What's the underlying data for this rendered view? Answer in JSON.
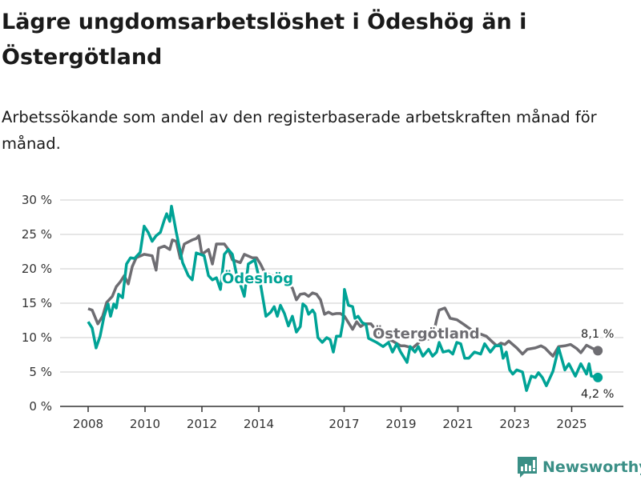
{
  "title": "Lägre ungdomsarbetslöshet i Ödeshög än i Östergötland",
  "subtitle": "Arbetssökande som andel av den registerbaserade arbetskraften månad för månad.",
  "brand": "Newsworthy",
  "colors": {
    "odeshog": "#00a396",
    "ostergotland": "#6e6d72",
    "grid": "#dddddd",
    "brand": "#3a8f86"
  },
  "chart_data": {
    "type": "line",
    "title": "Lägre ungdomsarbetslöshet i Ödeshög än i Östergötland",
    "xlabel": "",
    "ylabel": "",
    "ylim": [
      0,
      30
    ],
    "xlim": [
      2008,
      2026
    ],
    "grid": true,
    "y_ticks": [
      0,
      5,
      10,
      15,
      20,
      25,
      30
    ],
    "y_tick_labels": [
      "0 %",
      "5 %",
      "10 %",
      "15 %",
      "20 %",
      "25 %",
      "30 %"
    ],
    "x_ticks": [
      2008,
      2010,
      2012,
      2014,
      2017,
      2019,
      2021,
      2023,
      2025
    ],
    "x_tick_labels": [
      "2008",
      "2010",
      "2012",
      "2014",
      "2017",
      "2019",
      "2021",
      "2023",
      "2025"
    ],
    "series": [
      {
        "name": "Östergötland",
        "end_label": "8,1 %",
        "x": [
          2008.0,
          2008.14,
          2008.34,
          2008.51,
          2008.65,
          2008.85,
          2008.99,
          2009.13,
          2009.27,
          2009.41,
          2009.55,
          2009.69,
          2009.97,
          2010.25,
          2010.39,
          2010.48,
          2010.68,
          2010.87,
          2010.96,
          2011.1,
          2011.24,
          2011.38,
          2011.66,
          2011.8,
          2011.89,
          2012.0,
          2012.23,
          2012.37,
          2012.51,
          2012.79,
          2012.93,
          2013.07,
          2013.35,
          2013.49,
          2013.77,
          2013.92,
          2014.06,
          2014.2,
          2014.48,
          2014.76,
          2014.99,
          2015.18,
          2015.32,
          2015.46,
          2015.61,
          2015.75,
          2015.89,
          2016.03,
          2016.17,
          2016.31,
          2016.45,
          2016.59,
          2016.73,
          2016.87,
          2017.01,
          2017.3,
          2017.44,
          2017.58,
          2017.72,
          2017.94,
          2018.14,
          2018.42,
          2018.7,
          2018.99,
          2019.13,
          2019.41,
          2019.69,
          2019.97,
          2020.11,
          2020.25,
          2020.34,
          2020.54,
          2020.73,
          2020.96,
          2021.18,
          2021.52,
          2021.8,
          2022.0,
          2022.23,
          2022.37,
          2022.51,
          2022.65,
          2022.79,
          2023.07,
          2023.27,
          2023.44,
          2023.72,
          2023.92,
          2024.06,
          2024.2,
          2024.34,
          2024.54,
          2024.76,
          2024.96,
          2025.18,
          2025.32,
          2025.52,
          2025.75,
          2025.92
        ],
        "values": [
          14.2,
          14.0,
          12.0,
          13.1,
          15.1,
          16.0,
          17.4,
          18.1,
          19.0,
          17.8,
          20.3,
          21.6,
          22.1,
          21.9,
          19.8,
          23.0,
          23.3,
          22.8,
          24.2,
          24.0,
          21.5,
          23.6,
          24.2,
          24.4,
          24.8,
          22.1,
          22.8,
          20.7,
          23.6,
          23.6,
          22.8,
          21.3,
          20.9,
          22.1,
          21.6,
          21.6,
          20.7,
          19.5,
          19.0,
          18.1,
          18.1,
          17.2,
          15.5,
          16.3,
          16.4,
          16.0,
          16.5,
          16.3,
          15.5,
          13.4,
          13.7,
          13.4,
          13.5,
          13.5,
          13.1,
          11.2,
          12.3,
          11.6,
          12.0,
          12.0,
          11.0,
          10.0,
          9.5,
          8.8,
          8.8,
          8.5,
          9.5,
          9.8,
          10.0,
          12.6,
          14.0,
          14.3,
          12.8,
          12.6,
          12.0,
          11.0,
          10.5,
          10.2,
          9.3,
          8.8,
          9.2,
          9.0,
          9.5,
          8.5,
          7.6,
          8.3,
          8.5,
          8.8,
          8.5,
          7.9,
          7.3,
          8.7,
          8.8,
          9.0,
          8.4,
          7.8,
          8.9,
          8.4,
          8.1
        ]
      },
      {
        "name": "Ödeshög",
        "end_label": "4,2 %",
        "x": [
          2008.0,
          2008.14,
          2008.28,
          2008.42,
          2008.56,
          2008.7,
          2008.79,
          2008.9,
          2008.99,
          2009.07,
          2009.21,
          2009.35,
          2009.49,
          2009.63,
          2009.83,
          2009.97,
          2010.11,
          2010.25,
          2010.39,
          2010.54,
          2010.68,
          2010.76,
          2010.87,
          2010.93,
          2011.1,
          2011.32,
          2011.52,
          2011.66,
          2011.8,
          2011.94,
          2012.08,
          2012.23,
          2012.37,
          2012.51,
          2012.65,
          2012.79,
          2012.93,
          2013.07,
          2013.21,
          2013.35,
          2013.49,
          2013.63,
          2013.86,
          2014.06,
          2014.25,
          2014.42,
          2014.54,
          2014.65,
          2014.76,
          2014.9,
          2015.04,
          2015.18,
          2015.32,
          2015.46,
          2015.55,
          2015.66,
          2015.75,
          2015.89,
          2015.97,
          2016.08,
          2016.23,
          2016.39,
          2016.51,
          2016.62,
          2016.73,
          2016.87,
          2016.96,
          2017.01,
          2017.15,
          2017.3,
          2017.38,
          2017.49,
          2017.63,
          2017.77,
          2017.86,
          2018.14,
          2018.37,
          2018.56,
          2018.7,
          2018.85,
          2018.99,
          2019.21,
          2019.32,
          2019.49,
          2019.61,
          2019.77,
          2019.97,
          2020.11,
          2020.25,
          2020.34,
          2020.48,
          2020.68,
          2020.82,
          2020.96,
          2021.1,
          2021.24,
          2021.38,
          2021.58,
          2021.8,
          2021.94,
          2022.14,
          2022.31,
          2022.51,
          2022.59,
          2022.7,
          2022.82,
          2022.93,
          2023.07,
          2023.27,
          2023.41,
          2023.58,
          2023.72,
          2023.83,
          2023.97,
          2024.11,
          2024.34,
          2024.54,
          2024.76,
          2024.9,
          2025.13,
          2025.32,
          2025.52,
          2025.61,
          2025.69,
          2025.92
        ],
        "values": [
          12.3,
          11.4,
          8.5,
          10.2,
          13.1,
          14.9,
          13.1,
          14.9,
          14.3,
          16.3,
          15.8,
          20.7,
          21.6,
          21.5,
          22.4,
          26.2,
          25.3,
          24.0,
          24.8,
          25.3,
          27.1,
          28.0,
          26.9,
          29.1,
          25.3,
          20.9,
          19.0,
          18.4,
          22.3,
          22.1,
          21.9,
          19.0,
          18.4,
          18.7,
          17.0,
          22.1,
          22.8,
          22.1,
          19.3,
          17.8,
          16.0,
          20.7,
          21.3,
          17.8,
          13.1,
          13.7,
          14.5,
          13.1,
          14.7,
          13.5,
          11.7,
          13.1,
          10.8,
          11.6,
          14.9,
          14.5,
          13.4,
          14.0,
          13.5,
          10.0,
          9.3,
          10.0,
          9.7,
          7.9,
          10.2,
          10.2,
          12.3,
          17.0,
          14.7,
          14.5,
          12.8,
          13.1,
          12.2,
          11.9,
          9.9,
          9.3,
          8.7,
          9.3,
          7.9,
          9.1,
          7.9,
          6.4,
          8.7,
          7.9,
          8.7,
          7.3,
          8.3,
          7.3,
          7.9,
          9.3,
          7.9,
          8.1,
          7.6,
          9.3,
          9.1,
          7.0,
          7.0,
          7.9,
          7.6,
          9.1,
          7.9,
          8.8,
          8.8,
          7.0,
          7.9,
          5.3,
          4.7,
          5.3,
          5.0,
          2.3,
          4.4,
          4.2,
          4.9,
          4.2,
          3.0,
          5.1,
          8.5,
          5.3,
          6.2,
          4.4,
          6.2,
          4.7,
          6.2,
          4.4,
          4.2
        ]
      }
    ],
    "annotations": [
      "Ödeshög",
      "Östergötland"
    ]
  }
}
